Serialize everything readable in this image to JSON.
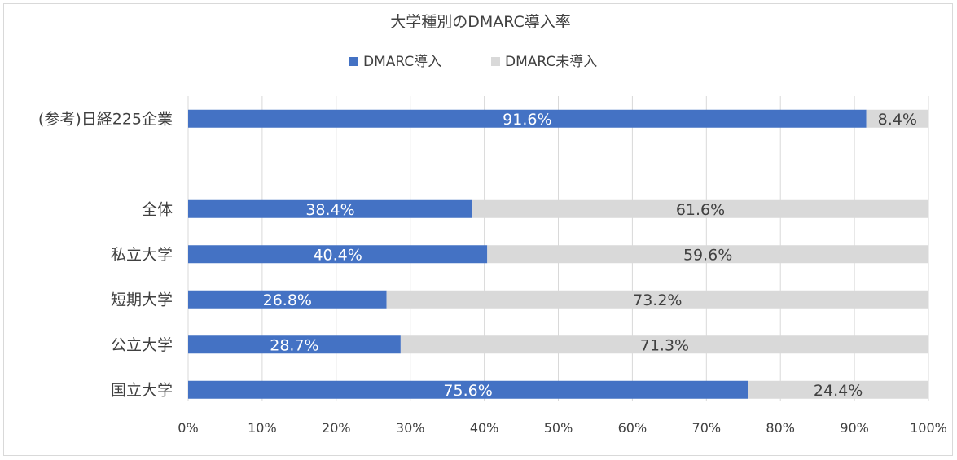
{
  "chart_data": {
    "type": "bar",
    "orientation": "horizontal",
    "stacked": "percent",
    "title": "大学種別のDMARC導入率",
    "categories": [
      "(参考)日経225企業",
      "",
      "全体",
      "私立大学",
      "短期大学",
      "公立大学",
      "国立大学"
    ],
    "series": [
      {
        "name": "DMARC導入",
        "color": "#4472c4",
        "label_color": "#ffffff",
        "values": [
          91.6,
          null,
          38.4,
          40.4,
          26.8,
          28.7,
          75.6
        ],
        "labels": [
          "91.6%",
          "",
          "38.4%",
          "40.4%",
          "26.8%",
          "28.7%",
          "75.6%"
        ]
      },
      {
        "name": "DMARC未導入",
        "color": "#d9d9d9",
        "label_color": "#404040",
        "values": [
          8.4,
          null,
          61.6,
          59.6,
          73.2,
          71.3,
          24.4
        ],
        "labels": [
          "8.4%",
          "",
          "61.6%",
          "59.6%",
          "73.2%",
          "71.3%",
          "24.4%"
        ]
      }
    ],
    "x_ticks": [
      "0%",
      "10%",
      "20%",
      "30%",
      "40%",
      "50%",
      "60%",
      "70%",
      "80%",
      "90%",
      "100%"
    ],
    "xlim": [
      0,
      100
    ],
    "grid": true,
    "legend_position": "top"
  }
}
